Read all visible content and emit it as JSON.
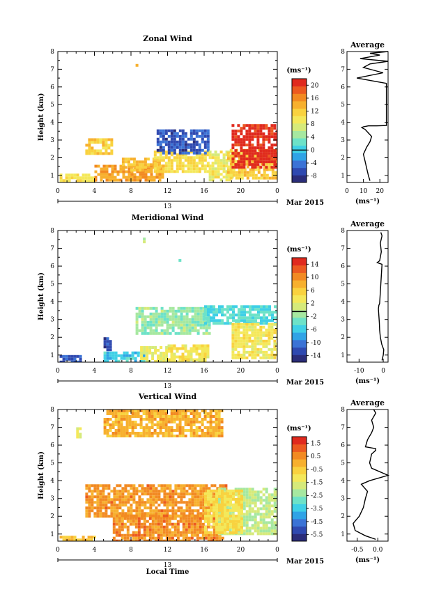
{
  "chart_data": [
    {
      "type": "heatmap",
      "title": "Zonal Wind",
      "ylabel": "Height (km)",
      "x_ticks": [
        "0",
        "4",
        "8",
        "12",
        "16",
        "20",
        "0"
      ],
      "y_ticks": [
        "1",
        "2",
        "3",
        "4",
        "5",
        "6",
        "7",
        "8"
      ],
      "xlim": [
        0,
        24
      ],
      "ylim": [
        0.6,
        8.0
      ],
      "date_day": "13",
      "date_label": "Mar 2015",
      "colorbar": {
        "unit": "(ms⁻¹)",
        "ticks": [
          "20",
          "16",
          "12",
          "8",
          "4",
          "0",
          "-4",
          "-8"
        ],
        "range": [
          -10,
          22
        ],
        "zero_line": 0
      },
      "regions": [
        {
          "x0": 0.2,
          "x1": 4.0,
          "y0": 0.7,
          "y1": 1.1,
          "value": 10
        },
        {
          "x0": 3.0,
          "x1": 6.0,
          "y0": 2.2,
          "y1": 3.1,
          "value": 12
        },
        {
          "x0": 4.0,
          "x1": 11.5,
          "y0": 0.8,
          "y1": 1.6,
          "value": 15
        },
        {
          "x0": 7.0,
          "x1": 11.0,
          "y0": 1.3,
          "y1": 2.0,
          "value": 13
        },
        {
          "x0": 10.5,
          "x1": 16.5,
          "y0": 1.2,
          "y1": 2.4,
          "value": 11
        },
        {
          "x0": 10.8,
          "x1": 16.5,
          "y0": 2.3,
          "y1": 3.6,
          "value": -6
        },
        {
          "x0": 16.5,
          "x1": 19.0,
          "y0": 0.8,
          "y1": 2.4,
          "value": 9
        },
        {
          "x0": 18.5,
          "x1": 24.0,
          "y0": 0.8,
          "y1": 2.5,
          "value": 12
        },
        {
          "x0": 19.0,
          "x1": 24.0,
          "y0": 1.5,
          "y1": 3.9,
          "value": 21
        },
        {
          "x0": 8.5,
          "x1": 8.8,
          "y0": 7.2,
          "y1": 7.3,
          "value": 15
        }
      ],
      "inset": {
        "title": "Average",
        "xlabel": "(ms⁻¹)",
        "x_ticks": [
          "0",
          "10",
          "20"
        ],
        "xlim": [
          0,
          25
        ],
        "y_ticks": [
          "1",
          "2",
          "3",
          "4",
          "5",
          "6",
          "7",
          "8"
        ],
        "ylim": [
          0.6,
          8.0
        ],
        "profile": {
          "x": [
            14,
            13,
            12,
            11,
            10,
            12,
            14,
            15,
            13,
            11,
            9,
            10,
            13,
            18,
            24,
            24,
            18,
            6,
            22,
            10,
            14,
            25,
            8,
            20,
            14,
            25
          ],
          "y": [
            0.7,
            1.0,
            1.4,
            1.8,
            2.2,
            2.6,
            2.9,
            3.2,
            3.4,
            3.6,
            3.7,
            3.75,
            3.8,
            3.8,
            3.82,
            6.2,
            6.3,
            6.5,
            6.8,
            7.1,
            7.3,
            7.45,
            7.6,
            7.8,
            7.9,
            8.0
          ]
        }
      }
    },
    {
      "type": "heatmap",
      "title": "Meridional Wind",
      "ylabel": "Height (km)",
      "x_ticks": [
        "0",
        "4",
        "8",
        "12",
        "16",
        "20",
        "0"
      ],
      "y_ticks": [
        "1",
        "2",
        "3",
        "4",
        "5",
        "6",
        "7",
        "8"
      ],
      "xlim": [
        0,
        24
      ],
      "ylim": [
        0.6,
        8.0
      ],
      "date_day": "13",
      "date_label": "Mar 2015",
      "colorbar": {
        "unit": "(ms⁻¹)",
        "ticks": [
          "14",
          "10",
          "6",
          "2",
          "-2",
          "-6",
          "-10",
          "-14"
        ],
        "range": [
          -15,
          16
        ],
        "zero_line": 0
      },
      "regions": [
        {
          "x0": 0.2,
          "x1": 2.5,
          "y0": 0.6,
          "y1": 1.0,
          "value": -11
        },
        {
          "x0": 5.0,
          "x1": 5.8,
          "y0": 1.3,
          "y1": 2.0,
          "value": -12
        },
        {
          "x0": 5.0,
          "x1": 9.5,
          "y0": 0.6,
          "y1": 1.2,
          "value": -5
        },
        {
          "x0": 8.5,
          "x1": 16.5,
          "y0": 2.2,
          "y1": 3.7,
          "value": -1
        },
        {
          "x0": 12.0,
          "x1": 16.5,
          "y0": 0.6,
          "y1": 1.6,
          "value": 4
        },
        {
          "x0": 16.0,
          "x1": 24.0,
          "y0": 2.8,
          "y1": 3.8,
          "value": -4
        },
        {
          "x0": 19.0,
          "x1": 24.0,
          "y0": 0.8,
          "y1": 2.8,
          "value": 4
        },
        {
          "x0": 9.0,
          "x1": 12.0,
          "y0": 0.6,
          "y1": 1.5,
          "value": 3
        },
        {
          "x0": 9.3,
          "x1": 9.5,
          "y0": 7.4,
          "y1": 7.6,
          "value": 0
        },
        {
          "x0": 13.2,
          "x1": 13.4,
          "y0": 6.3,
          "y1": 6.4,
          "value": -2
        }
      ],
      "inset": {
        "title": "Average",
        "xlabel": "(ms⁻¹)",
        "x_ticks": [
          "-10",
          "0"
        ],
        "xlim": [
          -15,
          2
        ],
        "y_ticks": [
          "1",
          "2",
          "3",
          "4",
          "5",
          "6",
          "7",
          "8"
        ],
        "ylim": [
          0.6,
          8.0
        ],
        "profile": {
          "x": [
            -0.5,
            0,
            0.2,
            -0.6,
            -1.2,
            -1.5,
            -1.6,
            -1.8,
            -2.0,
            -1.8,
            -1.5,
            -0.5,
            -1.5,
            -2.5,
            -1.5,
            -0.8,
            -1.2,
            -0.5,
            -1.0
          ],
          "y": [
            0.7,
            1.0,
            1.3,
            1.6,
            2.0,
            2.4,
            2.8,
            3.2,
            3.6,
            3.8,
            3.9,
            6.1,
            6.15,
            6.2,
            6.3,
            6.8,
            7.3,
            7.7,
            7.9
          ]
        }
      }
    },
    {
      "type": "heatmap",
      "title": "Vertical Wind",
      "ylabel": "Height (km)",
      "xlabel": "Local Time",
      "x_ticks": [
        "0",
        "4",
        "8",
        "12",
        "16",
        "20",
        "0"
      ],
      "y_ticks": [
        "1",
        "2",
        "3",
        "4",
        "5",
        "6",
        "7",
        "8"
      ],
      "xlim": [
        0,
        24
      ],
      "ylim": [
        0.6,
        8.0
      ],
      "date_day": "13",
      "date_label": "Mar 2015",
      "colorbar": {
        "unit": "(ms⁻¹)",
        "ticks": [
          "1.5",
          "0.5",
          "-0.5",
          "-1.5",
          "-2.5",
          "-3.5",
          "-4.5",
          "-5.5"
        ],
        "range": [
          -6,
          2
        ],
        "zero_line": null
      },
      "regions": [
        {
          "x0": 0.2,
          "x1": 4.0,
          "y0": 0.6,
          "y1": 0.9,
          "value": -0.2
        },
        {
          "x0": 3.0,
          "x1": 18.5,
          "y0": 2.0,
          "y1": 3.8,
          "value": 0.4
        },
        {
          "x0": 6.0,
          "x1": 18.0,
          "y0": 0.6,
          "y1": 2.1,
          "value": 0.5
        },
        {
          "x0": 17.5,
          "x1": 24.0,
          "y0": 1.0,
          "y1": 3.6,
          "value": -2.0
        },
        {
          "x0": 16.0,
          "x1": 20.0,
          "y0": 1.0,
          "y1": 3.5,
          "value": -0.9
        },
        {
          "x0": 5.0,
          "x1": 18.0,
          "y0": 6.5,
          "y1": 8.0,
          "value": 0.0
        },
        {
          "x0": 2.0,
          "x1": 2.4,
          "y0": 6.5,
          "y1": 7.0,
          "value": -1.3
        }
      ],
      "inset": {
        "title": "Average",
        "xlabel": "(ms⁻¹)",
        "x_ticks": [
          "-0.5",
          "0.0"
        ],
        "xlim": [
          -0.75,
          0.25
        ],
        "y_ticks": [
          "1",
          "2",
          "3",
          "4",
          "5",
          "6",
          "7",
          "8"
        ],
        "ylim": [
          0.6,
          8.0
        ],
        "profile": {
          "x": [
            -0.05,
            -0.3,
            -0.55,
            -0.6,
            -0.45,
            -0.35,
            -0.3,
            -0.25,
            -0.4,
            -0.2,
            0.25,
            -0.15,
            -0.2,
            -0.15,
            -0.05,
            -0.05,
            -0.3,
            -0.25,
            -0.15,
            -0.1,
            -0.15,
            -0.05,
            -0.1
          ],
          "y": [
            0.7,
            0.9,
            1.2,
            1.6,
            2.0,
            2.5,
            3.0,
            3.4,
            3.8,
            4.0,
            4.3,
            4.7,
            5.0,
            5.5,
            5.7,
            5.8,
            5.9,
            6.3,
            6.7,
            7.0,
            7.4,
            7.8,
            8.0
          ]
        }
      }
    }
  ]
}
